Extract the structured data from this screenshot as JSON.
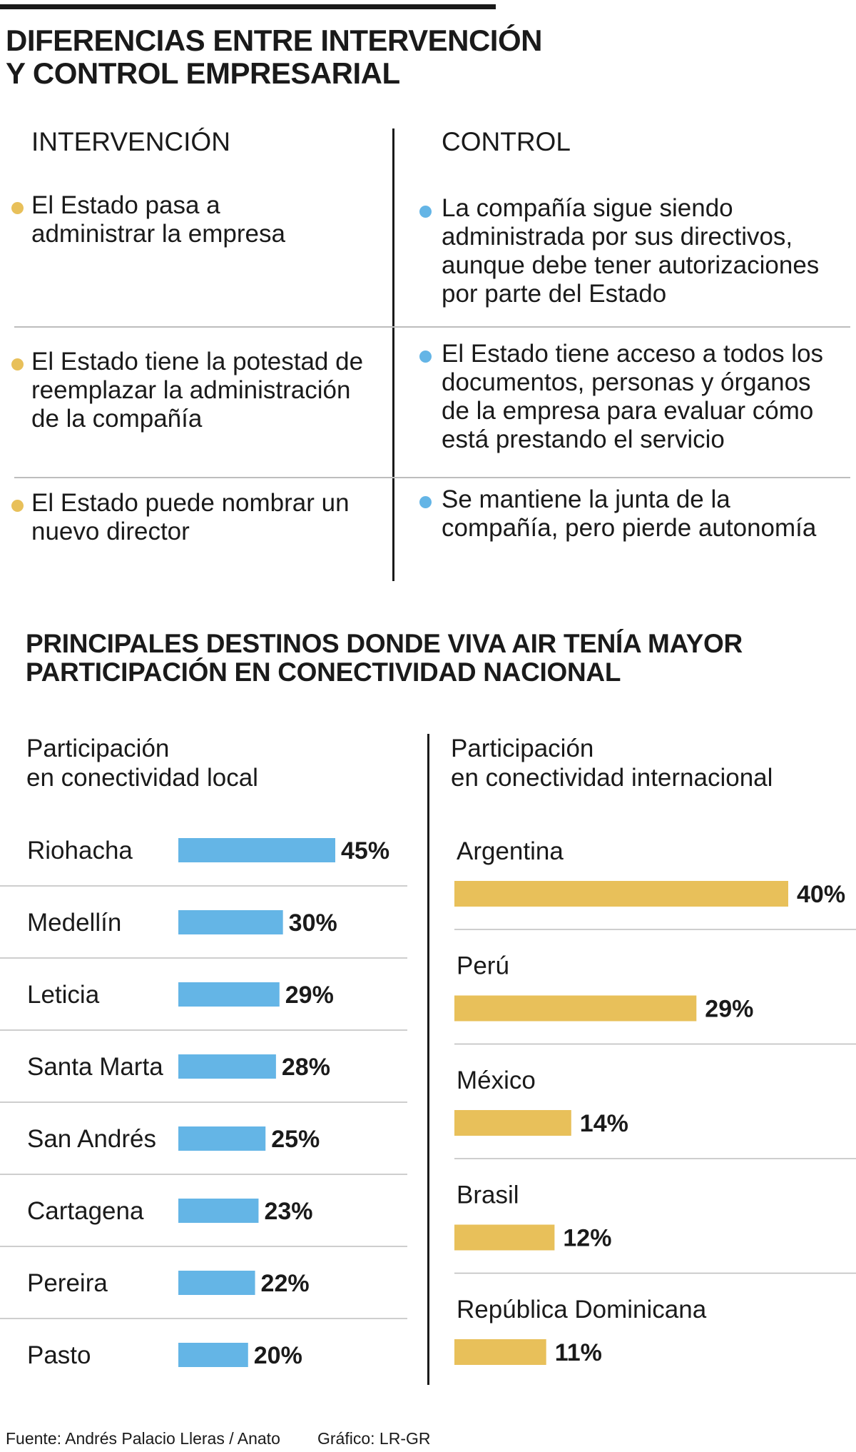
{
  "header": {
    "title_lines": [
      "DIFERENCIAS ENTRE INTERVENCIÓN",
      "Y CONTROL EMPRESARIAL"
    ]
  },
  "comparison": {
    "intervencion": {
      "heading": "INTERVENCIÓN",
      "bullet_color": "#E8C05A",
      "items": [
        {
          "lines": [
            "El Estado pasa a",
            "administrar la empresa"
          ]
        },
        {
          "lines": [
            "El Estado tiene la potestad de",
            "reemplazar la administración",
            "de la compañía"
          ]
        },
        {
          "lines": [
            "El Estado puede nombrar un",
            "nuevo director"
          ]
        }
      ]
    },
    "control": {
      "heading": "CONTROL",
      "bullet_color": "#64B5E6",
      "items": [
        {
          "lines": [
            "La compañía sigue siendo",
            "administrada por sus directivos,",
            "aunque debe tener autorizaciones",
            "por parte del Estado"
          ]
        },
        {
          "lines": [
            "El Estado tiene acceso a todos los",
            "documentos, personas y órganos",
            "de la empresa para evaluar cómo",
            "está prestando el servicio"
          ]
        },
        {
          "lines": [
            "Se mantiene la junta de la",
            "compañía, pero pierde autonomía"
          ]
        }
      ]
    }
  },
  "section2": {
    "title_lines": [
      "PRINCIPALES DESTINOS DONDE VIVA AIR TENÍA MAYOR",
      "PARTICIPACIÓN EN CONECTIVIDAD NACIONAL"
    ]
  },
  "chart_data": [
    {
      "type": "bar",
      "orientation": "horizontal",
      "title_lines": [
        "Participación",
        "en conectividad local"
      ],
      "categories": [
        "Riohacha",
        "Medellín",
        "Leticia",
        "Santa Marta",
        "San Andrés",
        "Cartagena",
        "Pereira",
        "Pasto"
      ],
      "values": [
        45,
        30,
        29,
        28,
        25,
        23,
        22,
        20
      ],
      "value_labels": [
        "45%",
        "30%",
        "29%",
        "28%",
        "25%",
        "23%",
        "22%",
        "20%"
      ],
      "unit": "%",
      "color": "#64B5E6",
      "xlim": [
        0,
        45
      ],
      "legend": "none"
    },
    {
      "type": "bar",
      "orientation": "horizontal",
      "title_lines": [
        "Participación",
        "en conectividad internacional"
      ],
      "categories": [
        "Argentina",
        "Perú",
        "México",
        "Brasil",
        "República Dominicana"
      ],
      "values": [
        40,
        29,
        14,
        12,
        11
      ],
      "value_labels": [
        "40%",
        "29%",
        "14%",
        "12%",
        "11%"
      ],
      "unit": "%",
      "color": "#E8C05A",
      "xlim": [
        0,
        40
      ],
      "legend": "none"
    }
  ],
  "footer": {
    "source": "Fuente: Andrés Palacio Lleras / Anato",
    "credit": "Gráfico: LR-GR"
  }
}
